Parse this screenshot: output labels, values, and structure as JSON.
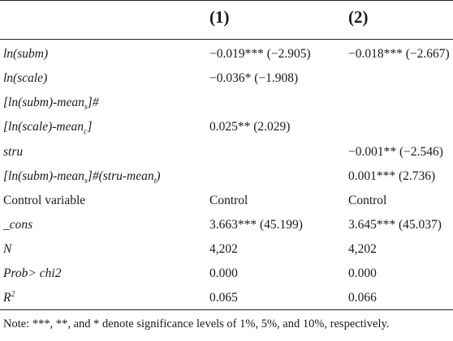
{
  "header": {
    "col1": "(1)",
    "col2": "(2)"
  },
  "rows": [
    {
      "label": "ln(subm)",
      "c1": "−0.019*** (−2.905)",
      "c2": "−0.018*** (−2.667)"
    },
    {
      "label": "ln(scale)",
      "c1": "−0.036* (−1.908)",
      "c2": ""
    },
    {
      "label_a": "[ln(subm)-mean",
      "label_sub": "s",
      "label_b": "]#",
      "c1": "",
      "c2": ""
    },
    {
      "label_a": "[ln(scale)-mean",
      "label_sub": "c",
      "label_b": "]",
      "c1": "0.025** (2.029)",
      "c2": ""
    },
    {
      "label": "stru",
      "c1": "",
      "c2": "−0.001** (−2.546)"
    },
    {
      "label_a": "[ln(subm)-mean",
      "label_sub": "s",
      "label_b": "]#(stru-mean",
      "label_sub2": "t",
      "label_c": ")",
      "c1": "",
      "c2": "0.001*** (2.736)"
    },
    {
      "label": "Control variable",
      "c1": "Control",
      "c2": "Control"
    },
    {
      "label": "_cons",
      "c1": "3.663*** (45.199)",
      "c2": "3.645*** (45.037)"
    },
    {
      "label": "N",
      "c1": "4,202",
      "c2": "4,202"
    },
    {
      "label": "Prob> chi2",
      "c1": "0.000",
      "c2": "0.000"
    },
    {
      "label": "R",
      "label_sup": "2",
      "c1": "0.065",
      "c2": "0.066"
    }
  ],
  "note": "Note: ***, **, and * denote significance levels of 1%, 5%, and 10%, respectively."
}
